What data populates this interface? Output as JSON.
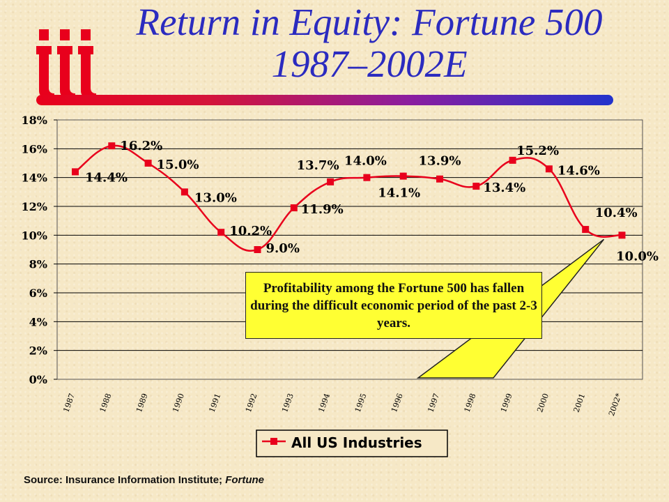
{
  "slide": {
    "title_line1": "Return in Equity: Fortune 500",
    "title_line2": "1987–2002E",
    "callout": "Profitability among the Fortune 500 has fallen during the difficult economic period of the past 2-3 years.",
    "source_prefix": "Source:  Insurance Information Institute; ",
    "source_italic": "Fortune",
    "colors": {
      "title": "#2b2bbf",
      "series": "#e8001c",
      "callout_bg": "#ffff33",
      "background": "#f6e8c6"
    }
  },
  "chart_data": {
    "type": "line",
    "categories": [
      "1987",
      "1988",
      "1989",
      "1990",
      "1991",
      "1992",
      "1993",
      "1994",
      "1995",
      "1996",
      "1997",
      "1998",
      "1999",
      "2000",
      "2001",
      "2002*"
    ],
    "series": [
      {
        "name": "All US Industries",
        "values": [
          14.4,
          16.2,
          15.0,
          13.0,
          10.2,
          9.0,
          11.9,
          13.7,
          14.0,
          14.1,
          13.9,
          13.4,
          15.2,
          14.6,
          10.4,
          10.0
        ],
        "labels": [
          "14.4%",
          "16.2%",
          "15.0%",
          "13.0%",
          "10.2%",
          "9.0%",
          "11.9%",
          "13.7%",
          "14.0%",
          "14.1%",
          "13.9%",
          "13.4%",
          "15.2%",
          "14.6%",
          "10.4%",
          "10.0%"
        ]
      }
    ],
    "ylim": [
      0,
      18
    ],
    "yticks": [
      "0%",
      "2%",
      "4%",
      "6%",
      "8%",
      "10%",
      "12%",
      "14%",
      "16%",
      "18%"
    ],
    "grid": true,
    "legend": "bottom",
    "smooth": true
  }
}
